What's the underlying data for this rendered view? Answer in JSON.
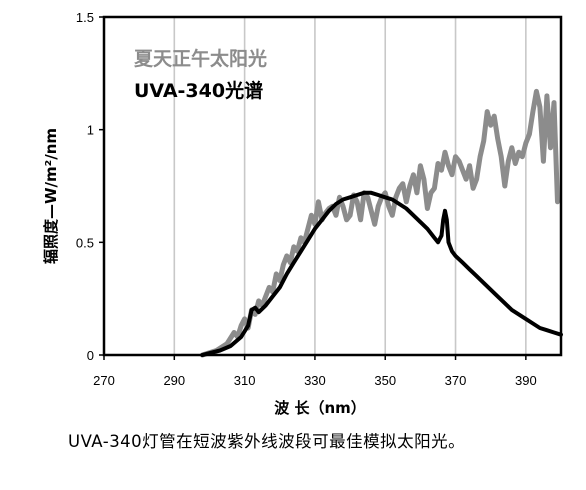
{
  "chart_data": {
    "type": "line",
    "xlabel": "波 长（nm）",
    "ylabel": "辐照度—W/m²/nm",
    "xlim": [
      270,
      400
    ],
    "ylim": [
      0,
      1.5
    ],
    "xticks": [
      270,
      290,
      310,
      330,
      350,
      370,
      390
    ],
    "xtick_labels": [
      "270",
      "290",
      "310",
      "330",
      "350",
      "370",
      "390"
    ],
    "yticks": [
      0,
      0.5,
      1,
      1.5
    ],
    "ytick_labels": [
      "0",
      "0.5",
      "1",
      "1.5"
    ],
    "grid": "vertical",
    "legend_placement": "top-left",
    "series": [
      {
        "name": "夏天正午太阳光",
        "color": "#8c8c8c",
        "x": [
          298,
          302,
          305,
          307,
          308,
          309,
          310,
          311,
          312,
          313,
          314,
          315,
          316,
          317,
          318,
          319,
          320,
          321,
          322,
          323,
          324,
          325,
          326,
          327,
          328,
          329,
          330,
          331,
          332,
          333,
          334,
          335,
          336,
          337,
          338,
          339,
          340,
          341,
          342,
          343,
          344,
          345,
          346,
          347,
          348,
          349,
          350,
          351,
          352,
          353,
          354,
          355,
          356,
          357,
          358,
          359,
          360,
          361,
          362,
          363,
          364,
          365,
          366,
          367,
          368,
          369,
          370,
          371,
          372,
          373,
          374,
          375,
          376,
          377,
          378,
          379,
          380,
          381,
          382,
          383,
          384,
          385,
          386,
          387,
          388,
          389,
          390,
          391,
          392,
          393,
          394,
          395,
          396,
          397,
          398,
          399
        ],
        "y": [
          0.0,
          0.02,
          0.05,
          0.1,
          0.08,
          0.13,
          0.16,
          0.12,
          0.2,
          0.18,
          0.24,
          0.22,
          0.26,
          0.3,
          0.28,
          0.36,
          0.33,
          0.4,
          0.44,
          0.41,
          0.48,
          0.46,
          0.52,
          0.5,
          0.56,
          0.62,
          0.58,
          0.68,
          0.6,
          0.63,
          0.65,
          0.66,
          0.62,
          0.7,
          0.66,
          0.6,
          0.62,
          0.71,
          0.68,
          0.6,
          0.72,
          0.7,
          0.64,
          0.58,
          0.66,
          0.7,
          0.72,
          0.66,
          0.62,
          0.7,
          0.74,
          0.76,
          0.68,
          0.75,
          0.8,
          0.72,
          0.84,
          0.78,
          0.65,
          0.72,
          0.74,
          0.85,
          0.82,
          0.9,
          0.84,
          0.8,
          0.88,
          0.86,
          0.82,
          0.78,
          0.84,
          0.74,
          0.78,
          0.88,
          0.95,
          1.08,
          1.02,
          1.06,
          0.96,
          0.88,
          0.75,
          0.86,
          0.92,
          0.85,
          0.9,
          0.88,
          0.94,
          0.98,
          1.08,
          1.17,
          1.1,
          0.86,
          1.15,
          0.92,
          1.12,
          0.68
        ]
      },
      {
        "name": "UVA-340光谱",
        "color": "#000000",
        "x": [
          298,
          303,
          306,
          309,
          311,
          312,
          313,
          314,
          316,
          318,
          320,
          322,
          324,
          326,
          328,
          330,
          332,
          334,
          336,
          338,
          340,
          342,
          344,
          346,
          348,
          350,
          352,
          354,
          356,
          358,
          360,
          362,
          364,
          365,
          366,
          366.5,
          367,
          367.5,
          368,
          369,
          370,
          372,
          374,
          376,
          378,
          380,
          382,
          384,
          386,
          388,
          390,
          392,
          394,
          396,
          398,
          400
        ],
        "y": [
          0.0,
          0.02,
          0.04,
          0.08,
          0.13,
          0.2,
          0.21,
          0.19,
          0.22,
          0.26,
          0.3,
          0.36,
          0.41,
          0.46,
          0.51,
          0.56,
          0.6,
          0.64,
          0.67,
          0.69,
          0.7,
          0.71,
          0.72,
          0.72,
          0.71,
          0.7,
          0.69,
          0.67,
          0.65,
          0.62,
          0.59,
          0.56,
          0.52,
          0.5,
          0.53,
          0.6,
          0.64,
          0.6,
          0.5,
          0.46,
          0.44,
          0.41,
          0.38,
          0.35,
          0.32,
          0.29,
          0.26,
          0.23,
          0.2,
          0.18,
          0.16,
          0.14,
          0.12,
          0.11,
          0.1,
          0.09
        ]
      }
    ]
  },
  "caption": "UVA-340灯管在短波紫外线波段可最佳模拟太阳光。"
}
